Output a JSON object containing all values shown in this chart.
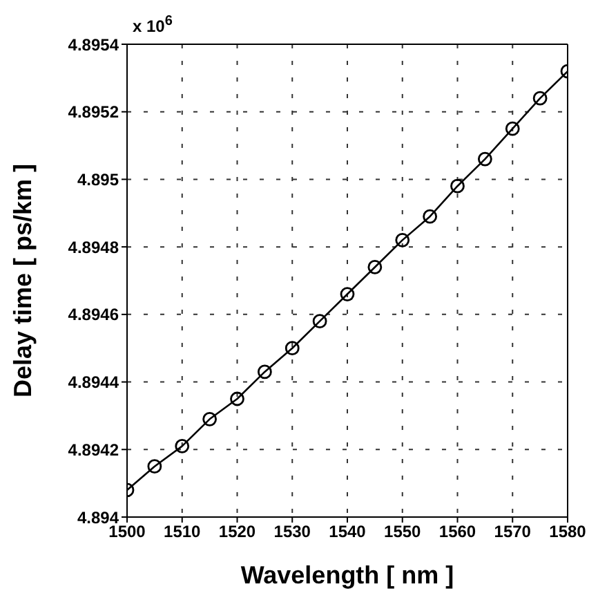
{
  "chart_data": {
    "type": "line",
    "xlabel": "Wavelength [ nm ]",
    "ylabel": "Delay time [ ps/km ]",
    "annotations": [
      "x 10$^{6}$"
    ],
    "x": [
      1500,
      1505,
      1510,
      1515,
      1520,
      1525,
      1530,
      1535,
      1540,
      1545,
      1550,
      1555,
      1560,
      1565,
      1570,
      1575,
      1580
    ],
    "series": [
      {
        "color": "#000000",
        "values": [
          4.89408,
          4.89415,
          4.89421,
          4.89429,
          4.89435,
          4.89443,
          4.8945,
          4.89458,
          4.89466,
          4.89474,
          4.89482,
          4.89489,
          4.89498,
          4.89506,
          4.89515,
          4.89524,
          4.89532
        ]
      }
    ],
    "xlim": [
      1500,
      1580
    ],
    "xticks": [
      1500,
      1510,
      1520,
      1530,
      1540,
      1550,
      1560,
      1570,
      1580
    ],
    "ylim": [
      4.894,
      4.8954
    ],
    "yticks": [
      4.894,
      4.8942,
      4.8944,
      4.8946,
      4.8948,
      4.895,
      4.8952,
      4.8954
    ],
    "grid": true,
    "marker": "circle",
    "line_style": "solid",
    "legend": false
  }
}
